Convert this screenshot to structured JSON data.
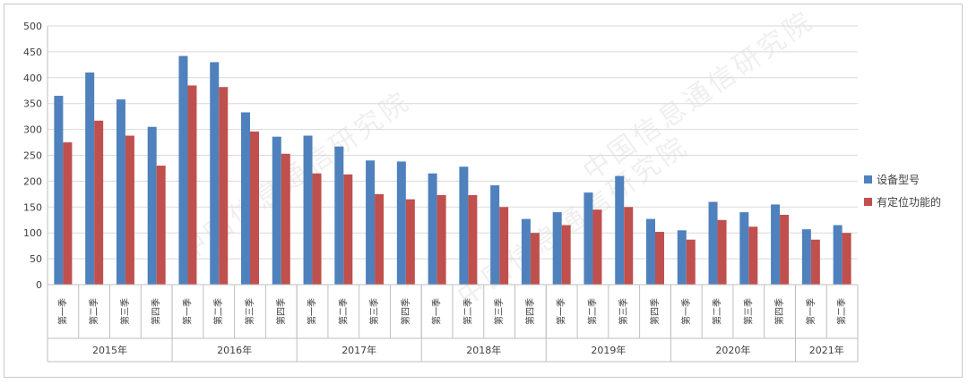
{
  "chart_data": {
    "type": "bar",
    "title": "",
    "xlabel": "",
    "ylabel": "",
    "ylim": [
      0,
      500
    ],
    "yticks": [
      0,
      50,
      100,
      150,
      200,
      250,
      300,
      350,
      400,
      450,
      500
    ],
    "grid": true,
    "legend_position": "right",
    "colors": {
      "series1": "#4f81bd",
      "series2": "#c0504d"
    },
    "groups": [
      {
        "label": "2015年",
        "quarters": [
          "第一季",
          "第二季",
          "第三季",
          "第四季"
        ]
      },
      {
        "label": "2016年",
        "quarters": [
          "第一季",
          "第二季",
          "第三季",
          "第四季"
        ]
      },
      {
        "label": "2017年",
        "quarters": [
          "第一季",
          "第二季",
          "第三季",
          "第四季"
        ]
      },
      {
        "label": "2018年",
        "quarters": [
          "第一季",
          "第二季",
          "第三季",
          "第四季"
        ]
      },
      {
        "label": "2019年",
        "quarters": [
          "第一季",
          "第二季",
          "第三季",
          "第四季"
        ]
      },
      {
        "label": "2020年",
        "quarters": [
          "第一季",
          "第二季",
          "第三季",
          "第四季"
        ]
      },
      {
        "label": "2021年",
        "quarters": [
          "第一季",
          "第二季"
        ]
      }
    ],
    "series": [
      {
        "name": "设备型号",
        "values": [
          365,
          410,
          358,
          305,
          442,
          430,
          333,
          286,
          288,
          267,
          240,
          238,
          215,
          228,
          192,
          127,
          140,
          178,
          210,
          127,
          105,
          160,
          140,
          155,
          107,
          115
        ]
      },
      {
        "name": "有定位功能的",
        "values": [
          275,
          317,
          288,
          230,
          385,
          382,
          296,
          253,
          215,
          213,
          175,
          165,
          173,
          173,
          150,
          100,
          115,
          145,
          150,
          102,
          87,
          125,
          112,
          135,
          87,
          100
        ]
      }
    ]
  },
  "watermark": "中国信息通信研究院"
}
